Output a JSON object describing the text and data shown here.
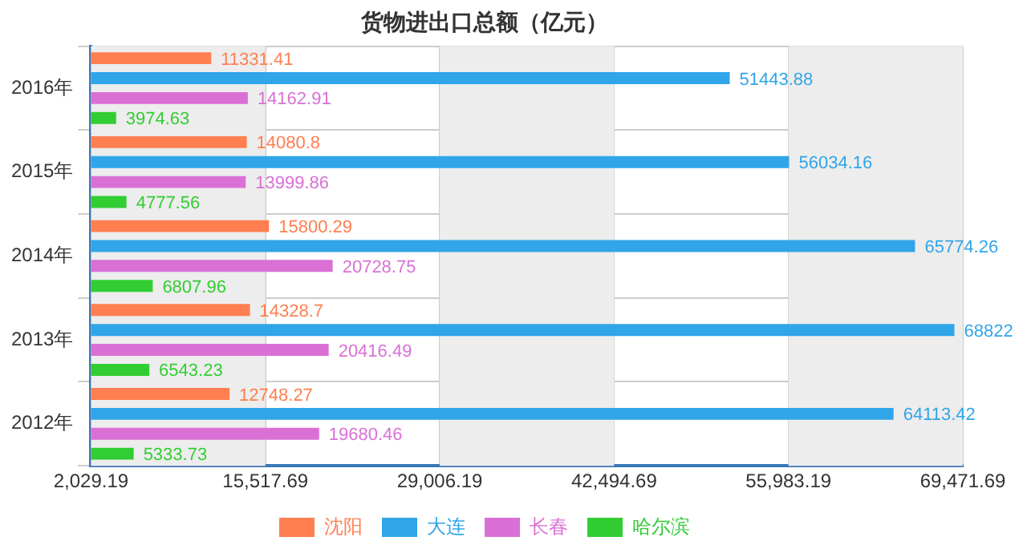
{
  "chart_data": {
    "type": "bar",
    "orientation": "horizontal",
    "title": "货物进出口总额（亿元）",
    "categories": [
      "2016年",
      "2015年",
      "2014年",
      "2013年",
      "2012年"
    ],
    "series": [
      {
        "name": "沈阳",
        "color": "#ff7f50",
        "values": [
          11331.41,
          14080.8,
          15800.29,
          14328.7,
          12748.27
        ]
      },
      {
        "name": "大连",
        "color": "#30a5e8",
        "values": [
          51443.88,
          56034.16,
          65774.26,
          68822,
          64113.42
        ]
      },
      {
        "name": "长春",
        "color": "#da70d6",
        "values": [
          14162.91,
          13999.86,
          20728.75,
          20416.49,
          19680.46
        ]
      },
      {
        "name": "哈尔滨",
        "color": "#32cd32",
        "values": [
          3974.63,
          4777.56,
          6807.96,
          6543.23,
          5333.73
        ]
      }
    ],
    "xlim": [
      2029.19,
      69471.69
    ],
    "xticks": [
      {
        "value": 2029.19,
        "label": "2,029.19"
      },
      {
        "value": 15517.69,
        "label": "15,517.69"
      },
      {
        "value": 29006.19,
        "label": "29,006.19"
      },
      {
        "value": 42494.69,
        "label": "42,494.69"
      },
      {
        "value": 55983.19,
        "label": "55,983.19"
      },
      {
        "value": 69471.69,
        "label": "69,471.69"
      }
    ],
    "grid": true,
    "legend": "bottom",
    "data_labels": true
  }
}
